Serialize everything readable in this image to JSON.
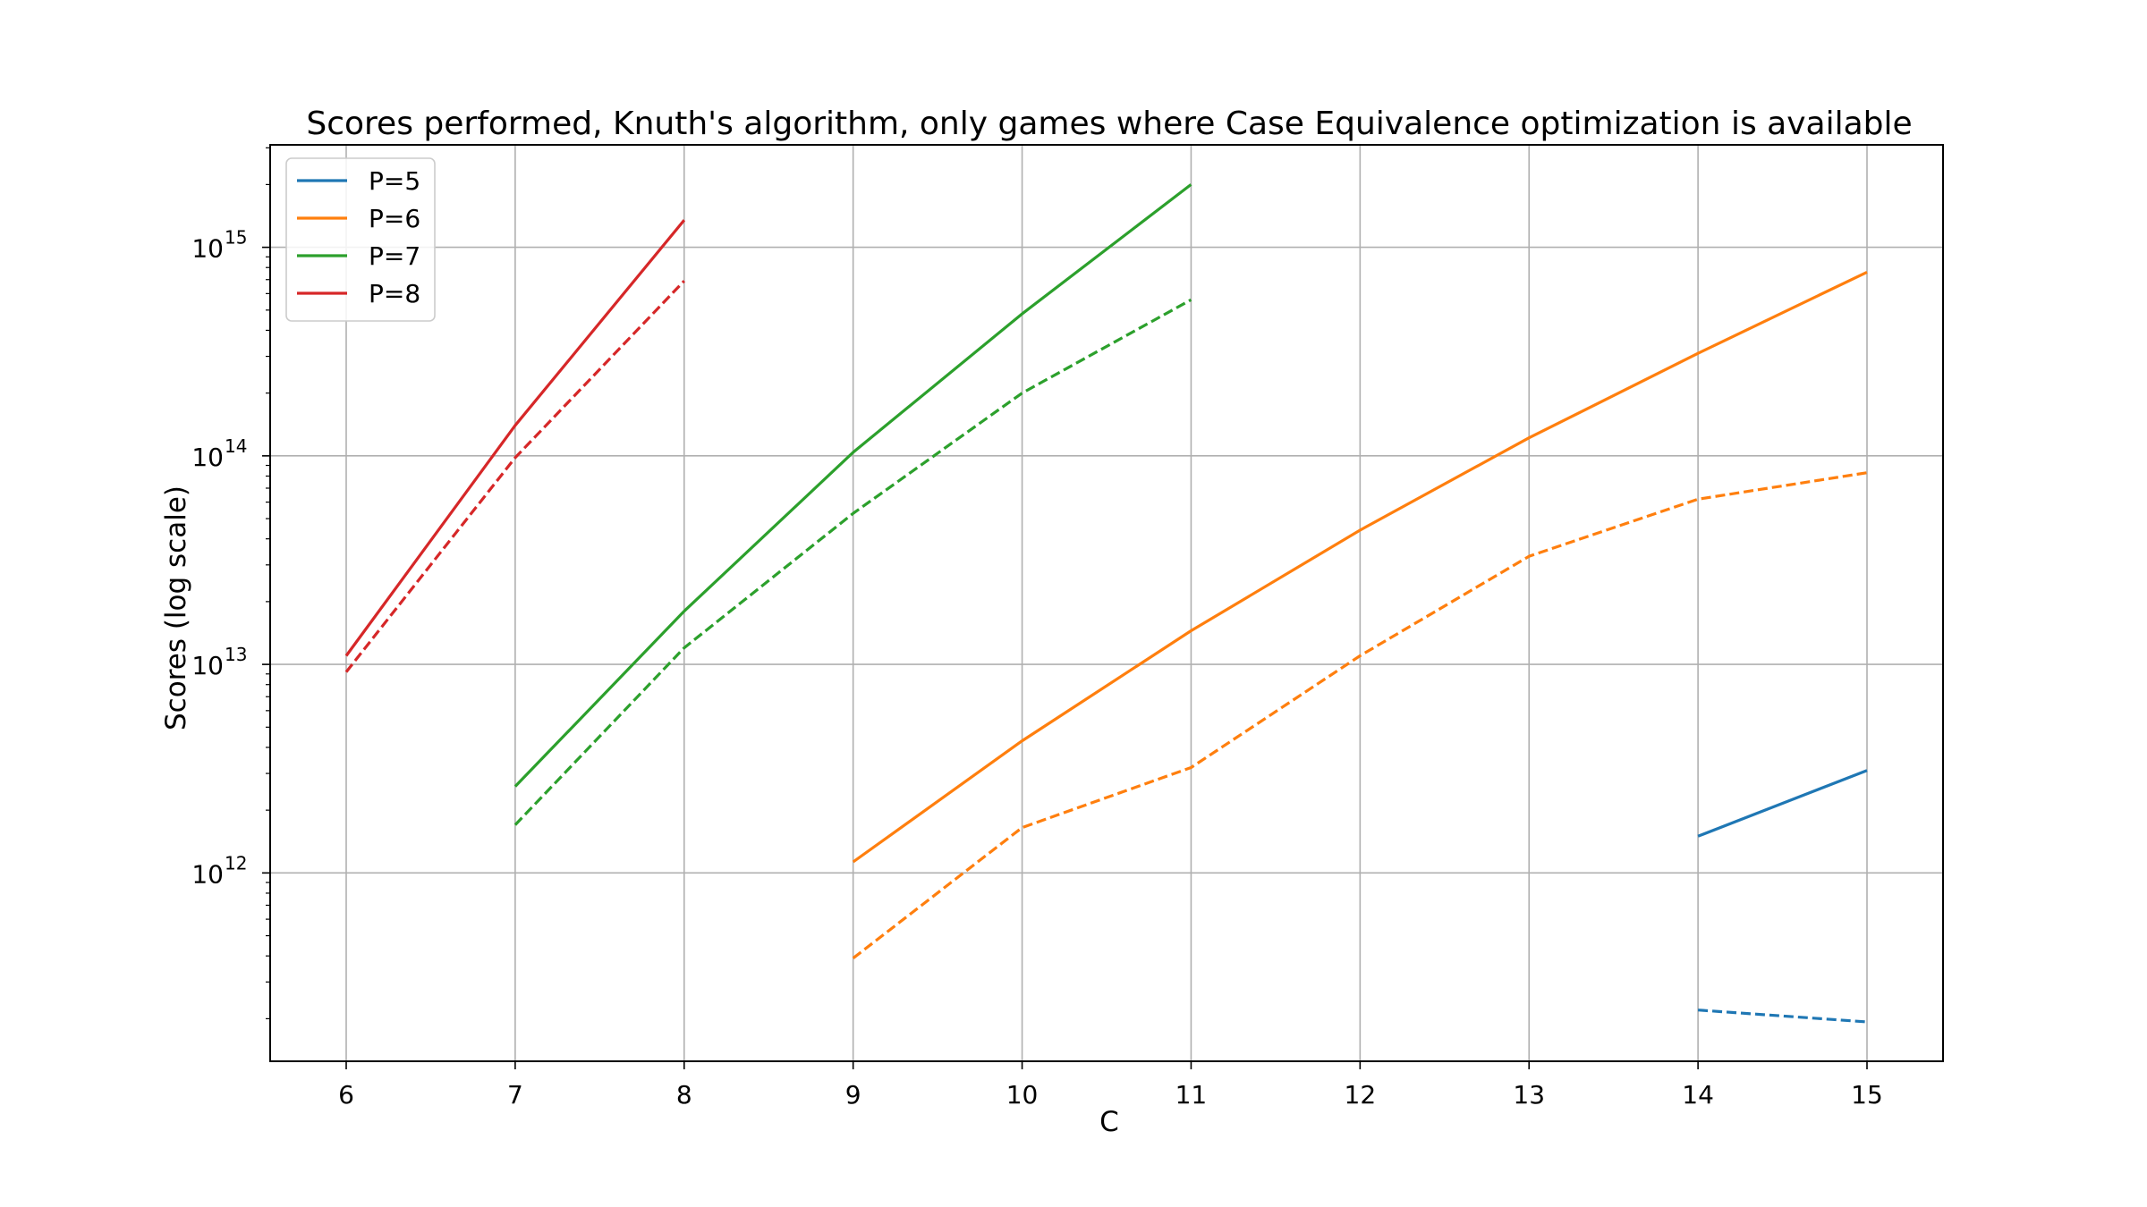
{
  "chart_data": {
    "type": "line",
    "title": "Scores performed, Knuth's algorithm, only games where Case Equivalence optimization is available",
    "xlabel": "C",
    "ylabel": "Scores (log scale)",
    "yscale": "log",
    "grid": true,
    "legend_position": "top-left",
    "xlim": [
      5.55,
      15.45
    ],
    "ylim": [
      125000000000.0,
      3100000000000000.0
    ],
    "x_ticks": [
      6,
      7,
      8,
      9,
      10,
      11,
      12,
      13,
      14,
      15
    ],
    "y_ticks": [
      {
        "value": 1000000000000.0,
        "base": "10",
        "exp": "12"
      },
      {
        "value": 10000000000000.0,
        "base": "10",
        "exp": "13"
      },
      {
        "value": 100000000000000.0,
        "base": "10",
        "exp": "14"
      },
      {
        "value": 1000000000000000.0,
        "base": "10",
        "exp": "15"
      }
    ],
    "series": [
      {
        "name": "P=5",
        "color": "#1f77b4",
        "dashed": false,
        "x": [
          14,
          15
        ],
        "y": [
          1500000000000.0,
          3100000000000.0
        ]
      },
      {
        "name": "P=6",
        "color": "#ff7f0e",
        "dashed": false,
        "x": [
          9,
          10,
          11,
          12,
          13,
          14,
          15
        ],
        "y": [
          1130000000000.0,
          4300000000000.0,
          14500000000000.0,
          44000000000000.0,
          122000000000000.0,
          310000000000000.0,
          760000000000000.0
        ]
      },
      {
        "name": "P=7",
        "color": "#2ca02c",
        "dashed": false,
        "x": [
          7,
          8,
          9,
          10,
          11
        ],
        "y": [
          2600000000000.0,
          18000000000000.0,
          104000000000000.0,
          480000000000000.0,
          2000000000000000.0
        ]
      },
      {
        "name": "P=8",
        "color": "#d62728",
        "dashed": false,
        "x": [
          6,
          7,
          8
        ],
        "y": [
          11000000000000.0,
          140000000000000.0,
          1350000000000000.0
        ]
      },
      {
        "color": "#1f77b4",
        "dashed": true,
        "x": [
          14,
          15
        ],
        "y": [
          220000000000.0,
          193000000000.0
        ]
      },
      {
        "color": "#ff7f0e",
        "dashed": true,
        "x": [
          9,
          10,
          11,
          12,
          13,
          14,
          15
        ],
        "y": [
          390000000000.0,
          1650000000000.0,
          3200000000000.0,
          11000000000000.0,
          33000000000000.0,
          62000000000000.0,
          83000000000000.0
        ]
      },
      {
        "color": "#2ca02c",
        "dashed": true,
        "x": [
          7,
          8,
          9,
          10,
          11
        ],
        "y": [
          1700000000000.0,
          12000000000000.0,
          53000000000000.0,
          200000000000000.0,
          560000000000000.0
        ]
      },
      {
        "color": "#d62728",
        "dashed": true,
        "x": [
          6,
          7,
          8
        ],
        "y": [
          9200000000000.0,
          98000000000000.0,
          690000000000000.0
        ]
      }
    ]
  }
}
